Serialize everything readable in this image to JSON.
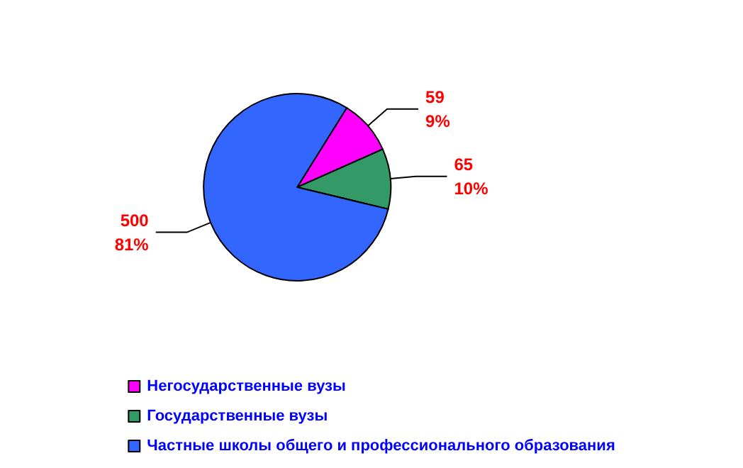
{
  "chart_data": {
    "type": "pie",
    "categories": [
      "Негосударственные вузы",
      "Государственные вузы",
      "Частные школы общего и профессионального образования"
    ],
    "values": [
      59,
      65,
      500
    ],
    "colors": [
      "#ff00ff",
      "#339966",
      "#3366ff"
    ],
    "value_labels": [
      "59\n9%",
      "65\n10%",
      "500\n81%"
    ],
    "legend": "bottom"
  }
}
